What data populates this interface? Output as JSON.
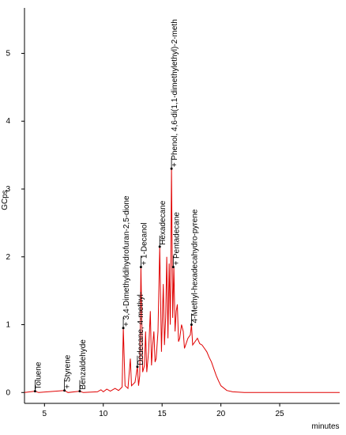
{
  "chart_data": {
    "type": "line",
    "y_label": "GCps",
    "x_label": "minutes",
    "color": "#e00000",
    "xlim": [
      3.3,
      30.1
    ],
    "ylim": [
      -0.16,
      5.67
    ],
    "xticks": [
      5,
      10,
      15,
      20,
      25
    ],
    "yticks": [
      0,
      1,
      2,
      3,
      4,
      5
    ],
    "x": [
      3.3,
      4.2,
      4.5,
      6.7,
      7.0,
      8.0,
      8.3,
      9.5,
      9.8,
      10.0,
      10.3,
      10.6,
      11.0,
      11.3,
      11.6,
      11.7,
      11.85,
      12.1,
      12.3,
      12.4,
      12.7,
      12.9,
      13.0,
      13.1,
      13.2,
      13.35,
      13.5,
      13.6,
      13.7,
      13.85,
      14.0,
      14.1,
      14.2,
      14.3,
      14.4,
      14.5,
      14.65,
      14.8,
      14.95,
      15.1,
      15.2,
      15.3,
      15.4,
      15.5,
      15.6,
      15.7,
      15.8,
      15.9,
      16.0,
      16.1,
      16.2,
      16.3,
      16.4,
      16.5,
      16.65,
      16.8,
      16.9,
      17.0,
      17.2,
      17.4,
      17.5,
      17.6,
      17.8,
      18.0,
      18.2,
      18.4,
      18.6,
      18.8,
      19.0,
      19.2,
      19.4,
      19.6,
      19.8,
      20.0,
      20.5,
      21.0,
      22.0,
      30.1
    ],
    "values": [
      0.0,
      0.02,
      0.0,
      0.03,
      0.0,
      0.02,
      0.0,
      0.01,
      0.04,
      0.01,
      0.05,
      0.02,
      0.06,
      0.03,
      0.08,
      0.95,
      0.1,
      0.06,
      0.5,
      0.1,
      0.15,
      0.38,
      0.1,
      0.25,
      1.85,
      0.3,
      0.4,
      0.9,
      0.3,
      0.6,
      1.2,
      0.4,
      0.7,
      0.9,
      0.45,
      0.5,
      0.9,
      2.15,
      0.6,
      1.6,
      0.7,
      1.1,
      2.0,
      0.8,
      1.9,
      1.0,
      3.3,
      1.1,
      1.85,
      0.9,
      1.2,
      1.3,
      0.75,
      0.8,
      1.0,
      0.9,
      0.65,
      0.7,
      0.8,
      0.85,
      1.0,
      0.7,
      0.75,
      0.8,
      0.72,
      0.7,
      0.65,
      0.6,
      0.52,
      0.45,
      0.35,
      0.25,
      0.17,
      0.1,
      0.03,
      0.01,
      0.0,
      0.0
    ],
    "annotations": [
      {
        "text": "Toluene",
        "x": 4.2,
        "y": 0.02
      },
      {
        "text": "+ Styrene",
        "x": 6.7,
        "y": 0.03
      },
      {
        "text": "Benzaldehyde",
        "x": 8.0,
        "y": 0.02
      },
      {
        "text": "+ 3,4-Dimethyldihydrofuran-2,5-dione",
        "x": 11.7,
        "y": 0.95
      },
      {
        "text": "Dodecane, 4-methyl-",
        "x": 12.9,
        "y": 0.38
      },
      {
        "text": "+ 1-Decanol",
        "x": 13.2,
        "y": 1.85
      },
      {
        "text": "Hexadecane",
        "x": 14.8,
        "y": 2.15
      },
      {
        "text": "+ Phenol, 4,6-di(1,1-dimethylethyl)-2-meth",
        "x": 15.8,
        "y": 3.3
      },
      {
        "text": "+ Pentadecane",
        "x": 15.95,
        "y": 1.85
      },
      {
        "text": "4-Methyl-hexadecahydro-pyrene",
        "x": 17.5,
        "y": 1.0
      }
    ]
  }
}
